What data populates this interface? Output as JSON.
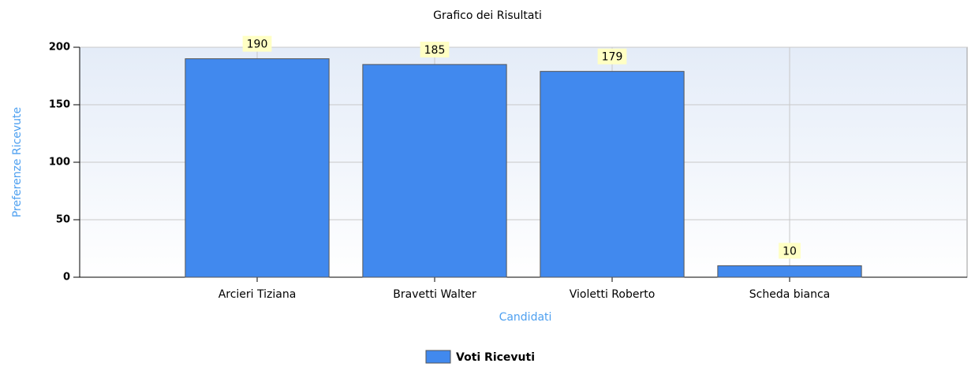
{
  "chart_data": {
    "type": "bar",
    "title": "Grafico dei Risultati",
    "x_label": "Candidati",
    "y_label": "Preferenze Ricevute",
    "categories": [
      "Arcieri Tiziana",
      "Bravetti Walter",
      "Violetti Roberto",
      "Scheda bianca"
    ],
    "series": [
      {
        "name": "Voti Ricevuti",
        "color": "#4189ee",
        "values": [
          190,
          185,
          179,
          10
        ]
      }
    ],
    "ylim": [
      0,
      200
    ],
    "yticks": [
      0,
      50,
      100,
      150,
      200
    ],
    "grid": true,
    "legend": "bottom"
  }
}
